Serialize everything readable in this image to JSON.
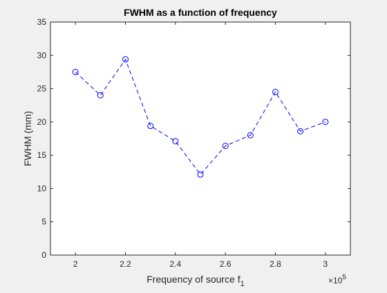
{
  "chart_data": {
    "type": "line",
    "title": "FWHM as a function of frequency",
    "xlabel": "Frequency of source f",
    "xlabel_subscript": "1",
    "ylabel": "FWHM (mm)",
    "x_exponent_base": "×10",
    "x_exponent_power": "5",
    "x_tick_labels": [
      "2",
      "2.2",
      "2.4",
      "2.6",
      "2.8",
      "3"
    ],
    "y_tick_labels": [
      "0",
      "5",
      "10",
      "15",
      "20",
      "25",
      "30",
      "35"
    ],
    "xlim": [
      190000,
      310000
    ],
    "ylim": [
      0,
      35
    ],
    "x_ticks": [
      200000,
      220000,
      240000,
      260000,
      280000,
      300000
    ],
    "y_ticks": [
      0,
      5,
      10,
      15,
      20,
      25,
      30,
      35
    ],
    "grid": false,
    "series": [
      {
        "color": "#0000ff",
        "line_style": "dashed",
        "marker": "circle",
        "x": [
          200000,
          210000,
          220000,
          230000,
          240000,
          250000,
          260000,
          270000,
          280000,
          290000,
          300000
        ],
        "y": [
          27.5,
          24.0,
          29.4,
          19.4,
          17.1,
          12.1,
          16.4,
          18.0,
          24.5,
          18.6,
          20.0
        ]
      }
    ]
  }
}
